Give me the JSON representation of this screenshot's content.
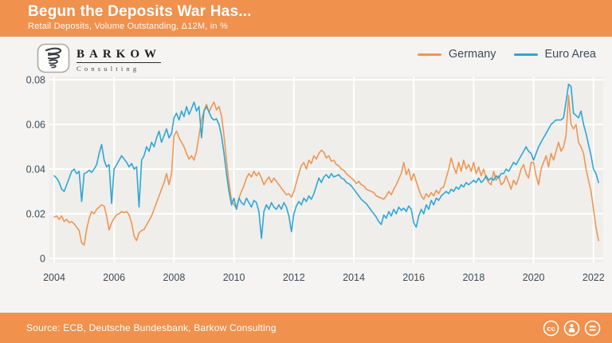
{
  "header": {
    "title": "Begun the Deposits War Has...",
    "subtitle": "Retail Deposits, Volume Outstanding, Δ12M, in %",
    "bg_color": "#F0914E"
  },
  "branding": {
    "name": "BARKOW",
    "tagline": "Consulting"
  },
  "legend": [
    {
      "label": "Germany",
      "color": "#EE9654"
    },
    {
      "label": "Euro Area",
      "color": "#2FA6D5"
    }
  ],
  "footer": {
    "source": "Source: ECB, Deutsche Bundesbank, Barkow Consulting",
    "license_icons": [
      "cc-icon",
      "attribution-person-icon",
      "equals-icon"
    ],
    "bg_color": "#F0914E"
  },
  "chart_data": {
    "type": "line",
    "title": "Begun the Deposits War Has...",
    "subtitle": "Retail Deposits, Volume Outstanding, Δ12M, in %",
    "x_start_year": 2004,
    "x_step_months": 1,
    "x_ticks": [
      2004,
      2006,
      2008,
      2010,
      2012,
      2014,
      2016,
      2018,
      2020,
      2022
    ],
    "x_tick_labels": [
      "2004",
      "2006",
      "2008",
      "2010",
      "2012",
      "2014",
      "2016",
      "2018",
      "2020",
      "2022"
    ],
    "y_ticks": [
      0,
      0.02,
      0.04,
      0.06,
      0.08
    ],
    "y_tick_labels": [
      "0",
      "0.02",
      "0.04",
      "0.06",
      "0.08"
    ],
    "ylim": [
      0,
      0.084
    ],
    "grid": true,
    "legend_position": "top-right",
    "plot_bg": "#EFEEEB",
    "grid_color": "#FFFFFF",
    "axis_text_color": "#3E4C59",
    "series": [
      {
        "name": "Germany",
        "color": "#EE9654",
        "values": [
          0.0185,
          0.019,
          0.0175,
          0.019,
          0.0165,
          0.0175,
          0.016,
          0.0165,
          0.0155,
          0.014,
          0.0125,
          0.007,
          0.006,
          0.013,
          0.018,
          0.021,
          0.02,
          0.022,
          0.023,
          0.024,
          0.0235,
          0.019,
          0.0127,
          0.016,
          0.018,
          0.0195,
          0.02,
          0.021,
          0.0205,
          0.021,
          0.0195,
          0.016,
          0.01,
          0.008,
          0.0115,
          0.0125,
          0.013,
          0.015,
          0.017,
          0.019,
          0.022,
          0.025,
          0.028,
          0.031,
          0.034,
          0.038,
          0.033,
          0.038,
          0.055,
          0.057,
          0.054,
          0.052,
          0.05,
          0.047,
          0.0445,
          0.046,
          0.044,
          0.048,
          0.055,
          0.062,
          0.066,
          0.069,
          0.0655,
          0.068,
          0.07,
          0.0665,
          0.068,
          0.064,
          0.055,
          0.044,
          0.034,
          0.026,
          0.024,
          0.0225,
          0.027,
          0.03,
          0.0325,
          0.036,
          0.038,
          0.0365,
          0.039,
          0.037,
          0.0385,
          0.036,
          0.033,
          0.035,
          0.0365,
          0.034,
          0.036,
          0.0345,
          0.033,
          0.0315,
          0.03,
          0.0285,
          0.029,
          0.0275,
          0.03,
          0.034,
          0.038,
          0.0415,
          0.043,
          0.04,
          0.044,
          0.0425,
          0.046,
          0.0445,
          0.047,
          0.0485,
          0.0475,
          0.045,
          0.046,
          0.0435,
          0.044,
          0.042,
          0.0415,
          0.04,
          0.0395,
          0.038,
          0.037,
          0.036,
          0.035,
          0.0335,
          0.0345,
          0.033,
          0.0325,
          0.031,
          0.0305,
          0.03,
          0.0295,
          0.028,
          0.0275,
          0.027,
          0.0265,
          0.028,
          0.03,
          0.0285,
          0.031,
          0.033,
          0.0355,
          0.038,
          0.043,
          0.0375,
          0.04,
          0.035,
          0.038,
          0.0345,
          0.031,
          0.028,
          0.0265,
          0.029,
          0.0275,
          0.0295,
          0.028,
          0.0305,
          0.029,
          0.0315,
          0.032,
          0.036,
          0.04,
          0.045,
          0.041,
          0.038,
          0.043,
          0.039,
          0.044,
          0.04,
          0.042,
          0.039,
          0.043,
          0.038,
          0.041,
          0.037,
          0.04,
          0.036,
          0.034,
          0.033,
          0.039,
          0.035,
          0.037,
          0.033,
          0.034,
          0.037,
          0.034,
          0.031,
          0.035,
          0.033,
          0.036,
          0.04,
          0.042,
          0.038,
          0.036,
          0.043,
          0.043,
          0.037,
          0.033,
          0.04,
          0.043,
          0.046,
          0.041,
          0.047,
          0.044,
          0.048,
          0.052,
          0.048,
          0.05,
          0.055,
          0.073,
          0.06,
          0.058,
          0.06,
          0.052,
          0.05,
          0.047,
          0.04,
          0.035,
          0.03,
          0.022,
          0.014,
          0.008
        ]
      },
      {
        "name": "Euro Area",
        "color": "#2FA6D5",
        "values": [
          0.037,
          0.036,
          0.034,
          0.031,
          0.03,
          0.033,
          0.036,
          0.039,
          0.04,
          0.038,
          0.039,
          0.0255,
          0.038,
          0.0385,
          0.0395,
          0.0385,
          0.04,
          0.042,
          0.047,
          0.051,
          0.044,
          0.041,
          0.042,
          0.0246,
          0.04,
          0.042,
          0.044,
          0.046,
          0.0445,
          0.043,
          0.041,
          0.0425,
          0.04,
          0.041,
          0.023,
          0.044,
          0.046,
          0.05,
          0.048,
          0.052,
          0.05,
          0.054,
          0.057,
          0.052,
          0.055,
          0.058,
          0.054,
          0.056,
          0.063,
          0.065,
          0.062,
          0.066,
          0.0635,
          0.068,
          0.0645,
          0.067,
          0.07,
          0.066,
          0.068,
          0.054,
          0.066,
          0.068,
          0.0655,
          0.063,
          0.062,
          0.0625,
          0.06,
          0.055,
          0.047,
          0.038,
          0.03,
          0.024,
          0.027,
          0.022,
          0.027,
          0.025,
          0.024,
          0.027,
          0.025,
          0.023,
          0.026,
          0.025,
          0.021,
          0.009,
          0.021,
          0.024,
          0.022,
          0.025,
          0.023,
          0.022,
          0.024,
          0.022,
          0.025,
          0.023,
          0.019,
          0.012,
          0.02,
          0.0235,
          0.0255,
          0.024,
          0.027,
          0.0255,
          0.028,
          0.0265,
          0.029,
          0.0325,
          0.036,
          0.034,
          0.0365,
          0.0375,
          0.036,
          0.038,
          0.0365,
          0.037,
          0.0375,
          0.036,
          0.0355,
          0.034,
          0.0335,
          0.0325,
          0.031,
          0.0295,
          0.028,
          0.0265,
          0.0255,
          0.0245,
          0.023,
          0.0215,
          0.02,
          0.0185,
          0.0165,
          0.0152,
          0.0195,
          0.018,
          0.021,
          0.019,
          0.022,
          0.02,
          0.023,
          0.0215,
          0.0225,
          0.021,
          0.0235,
          0.022,
          0.016,
          0.014,
          0.019,
          0.022,
          0.02,
          0.024,
          0.022,
          0.026,
          0.024,
          0.027,
          0.026,
          0.028,
          0.029,
          0.03,
          0.029,
          0.031,
          0.03,
          0.032,
          0.031,
          0.033,
          0.032,
          0.034,
          0.033,
          0.034,
          0.035,
          0.034,
          0.036,
          0.034,
          0.035,
          0.037,
          0.035,
          0.036,
          0.035,
          0.037,
          0.036,
          0.038,
          0.038,
          0.04,
          0.039,
          0.041,
          0.043,
          0.042,
          0.044,
          0.046,
          0.048,
          0.05,
          0.048,
          0.047,
          0.044,
          0.047,
          0.05,
          0.052,
          0.054,
          0.056,
          0.058,
          0.06,
          0.061,
          0.062,
          0.062,
          0.062,
          0.063,
          0.07,
          0.078,
          0.077,
          0.065,
          0.064,
          0.063,
          0.066,
          0.06,
          0.056,
          0.051,
          0.046,
          0.04,
          0.038,
          0.034
        ]
      }
    ]
  }
}
